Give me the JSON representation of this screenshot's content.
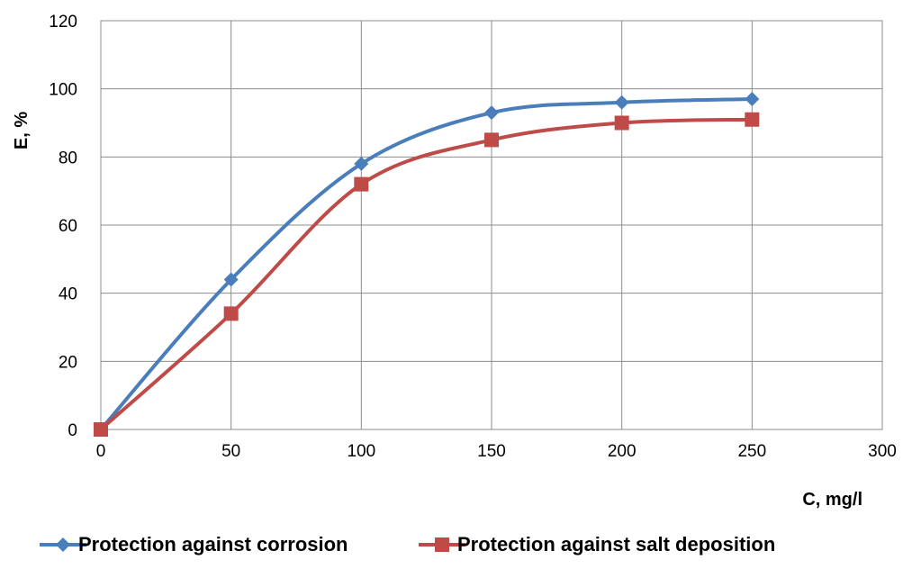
{
  "chart_data": {
    "type": "line",
    "title": "",
    "xlabel": "C, mg/l",
    "ylabel": "E, %",
    "xlim": [
      0,
      300
    ],
    "ylim": [
      0,
      120
    ],
    "x_ticks": [
      0,
      50,
      100,
      150,
      200,
      250,
      300
    ],
    "y_ticks": [
      0,
      20,
      40,
      60,
      80,
      100,
      120
    ],
    "grid": true,
    "smooth": true,
    "legend_position": "bottom",
    "series": [
      {
        "name": "Protection against corrosion",
        "color": "#4a7ebb",
        "marker": "diamond",
        "x": [
          0,
          50,
          100,
          150,
          200,
          250
        ],
        "y": [
          0,
          44,
          78,
          93,
          96,
          97
        ]
      },
      {
        "name": "Protection against salt deposition",
        "color": "#be4b48",
        "marker": "square",
        "x": [
          0,
          50,
          100,
          150,
          200,
          250
        ],
        "y": [
          0,
          34,
          72,
          85,
          90,
          91
        ]
      }
    ]
  }
}
